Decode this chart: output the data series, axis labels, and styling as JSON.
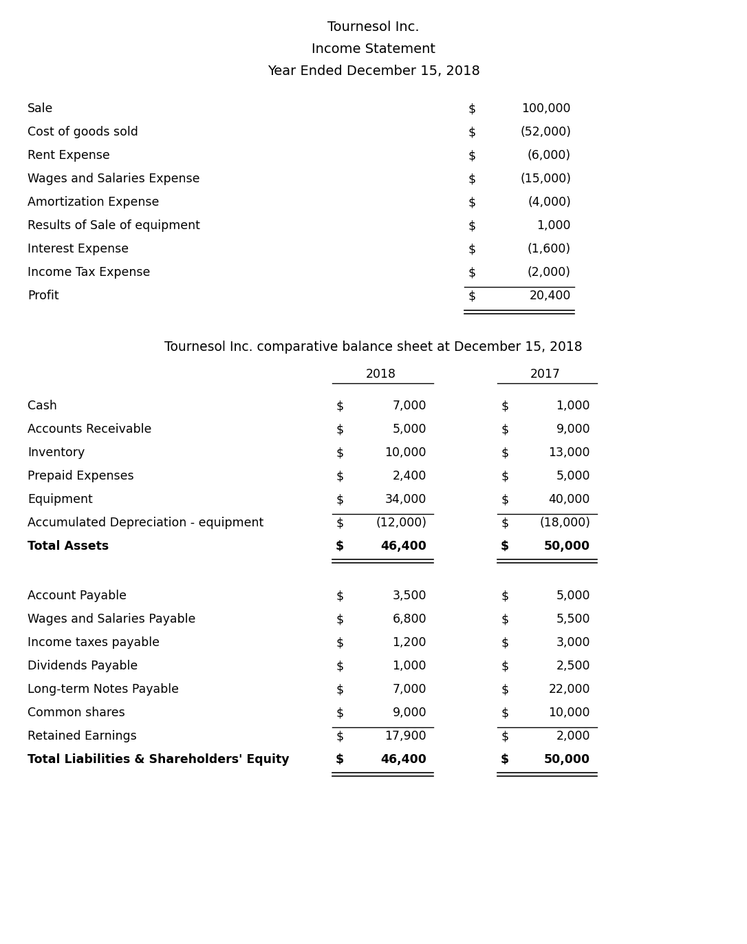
{
  "bg_color": "#ffffff",
  "text_color": "#000000",
  "title1": "Tournesol Inc.",
  "title2": "Income Statement",
  "title3": "Year Ended December 15, 2018",
  "title_fontsize": 14,
  "body_fontsize": 12.5,
  "income_labels": [
    "Sale",
    "Cost of goods sold",
    "Rent Expense",
    "Wages and Salaries Expense",
    "Amortization Expense",
    "Results of Sale of equipment",
    "Interest Expense",
    "Income Tax Expense",
    "Profit"
  ],
  "income_values": [
    "100,000",
    "(52,000)",
    "(6,000)",
    "(15,000)",
    "(4,000)",
    "1,000",
    "(1,600)",
    "(2,000)",
    "20,400"
  ],
  "bs_title": "Tournesol Inc. comparative balance sheet at December 15, 2018",
  "bs_title_fontsize": 13.5,
  "col_headers": [
    "2018",
    "2017"
  ],
  "asset_labels": [
    "Cash",
    "Accounts Receivable",
    "Inventory",
    "Prepaid Expenses",
    "Equipment",
    "Accumulated Depreciation - equipment",
    "Total Assets"
  ],
  "asset_2018": [
    "7,000",
    "5,000",
    "10,000",
    "2,400",
    "34,000",
    "(12,000)",
    "46,400"
  ],
  "asset_2017": [
    "1,000",
    "9,000",
    "13,000",
    "5,000",
    "40,000",
    "(18,000)",
    "50,000"
  ],
  "liability_labels": [
    "Account Payable",
    "Wages and Salaries Payable",
    "Income taxes payable",
    "Dividends Payable",
    "Long-term Notes Payable",
    "Common shares",
    "Retained Earnings",
    "Total Liabilities & Shareholders' Equity"
  ],
  "liability_2018": [
    "3,500",
    "6,800",
    "1,200",
    "1,000",
    "7,000",
    "9,000",
    "17,900",
    "46,400"
  ],
  "liability_2017": [
    "5,000",
    "5,500",
    "3,000",
    "2,500",
    "22,000",
    "10,000",
    "2,000",
    "50,000"
  ]
}
